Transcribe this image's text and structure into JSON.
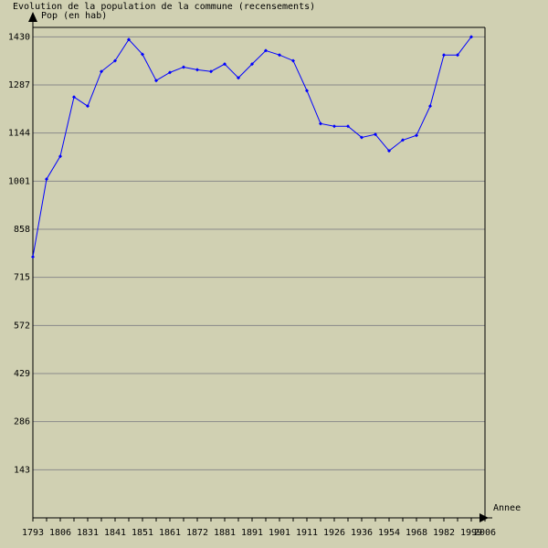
{
  "chart_data": {
    "type": "line",
    "title": "Evolution de la population de la commune (recensements)",
    "y_label": "Pop (en hab)",
    "x_label": "Annee",
    "categories": [
      "1793",
      null,
      "1806",
      null,
      "1831",
      null,
      "1841",
      null,
      "1851",
      null,
      "1861",
      null,
      "1872",
      null,
      "1881",
      null,
      "1891",
      null,
      "1901",
      null,
      "1911",
      null,
      "1926",
      null,
      "1936",
      null,
      "1954",
      null,
      "1968",
      null,
      "1982",
      null,
      "1999",
      "2006"
    ],
    "series": [
      {
        "name": "Pop (en hab)",
        "color": "#0000ff",
        "values": [
          776,
          1007,
          1075,
          1251,
          1224,
          1327,
          1359,
          1422,
          1378,
          1300,
          1324,
          1340,
          1332,
          1327,
          1349,
          1308,
          1349,
          1389,
          1376,
          1359,
          1270,
          1172,
          1164,
          1164,
          1131,
          1140,
          1091,
          1123,
          1137,
          1224,
          1376,
          1376,
          1430,
          null
        ]
      }
    ],
    "ylim": [
      0,
      1458
    ],
    "yticks": [
      143,
      286,
      429,
      572,
      715,
      858,
      1001,
      1144,
      1287,
      1430
    ],
    "grid": true
  }
}
